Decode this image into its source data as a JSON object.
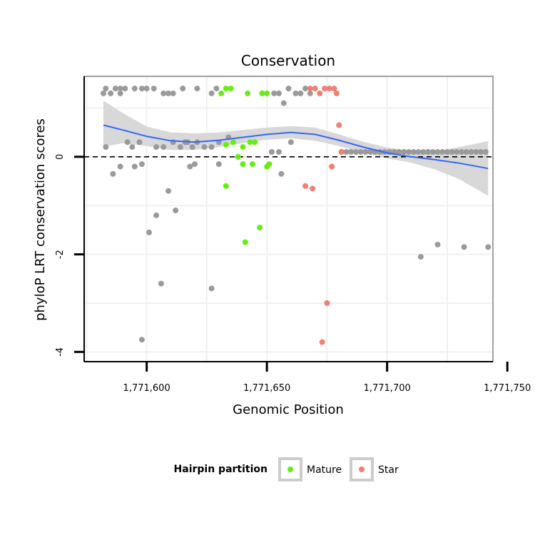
{
  "chart_data": {
    "type": "scatter",
    "title": "Conservation",
    "xlabel": "Genomic Position",
    "ylabel": "phyloP LRT conservation scores",
    "xlim": [
      1771574,
      1771744
    ],
    "ylim": [
      -4.2,
      1.65
    ],
    "x_ticks": [
      1771600,
      1771650,
      1771700,
      1771750
    ],
    "x_tick_labels": [
      "1,771,600",
      "1,771,650",
      "1,771,700",
      "1,771,750"
    ],
    "y_ticks": [
      -4,
      -2,
      0
    ],
    "y_tick_labels": [
      "-4",
      "-2",
      "0"
    ],
    "grid": true,
    "reference_line": {
      "y": 0,
      "style": "dashed"
    },
    "legend": {
      "title": "Hairpin partition",
      "position": "bottom",
      "entries": [
        {
          "label": "Mature",
          "color": "#66ee11"
        },
        {
          "label": "Star",
          "color": "#f27f73"
        }
      ]
    },
    "colors": {
      "other": "#9a9a9a",
      "mature": "#66ee11",
      "star": "#f27f73",
      "smooth_line": "#3366ff",
      "confidence_band": "#d4d4d4",
      "panel_border": "#a0a0a0"
    },
    "series": [
      {
        "name": "Other",
        "points": [
          [
            1771582,
            1.3
          ],
          [
            1771583,
            1.4
          ],
          [
            1771585,
            1.3
          ],
          [
            1771587,
            1.4
          ],
          [
            1771589,
            1.3
          ],
          [
            1771589,
            1.4
          ],
          [
            1771591,
            1.4
          ],
          [
            1771595,
            1.4
          ],
          [
            1771598,
            1.4
          ],
          [
            1771600,
            1.4
          ],
          [
            1771603,
            1.4
          ],
          [
            1771607,
            1.3
          ],
          [
            1771609,
            1.3
          ],
          [
            1771611,
            1.3
          ],
          [
            1771615,
            1.4
          ],
          [
            1771621,
            1.4
          ],
          [
            1771627,
            1.3
          ],
          [
            1771629,
            1.4
          ],
          [
            1771653,
            1.3
          ],
          [
            1771655,
            1.3
          ],
          [
            1771657,
            1.1
          ],
          [
            1771659,
            1.4
          ],
          [
            1771662,
            1.3
          ],
          [
            1771664,
            1.3
          ],
          [
            1771666,
            1.4
          ],
          [
            1771668,
            1.3
          ],
          [
            1771583,
            0.2
          ],
          [
            1771592,
            0.3
          ],
          [
            1771594,
            0.2
          ],
          [
            1771597,
            0.3
          ],
          [
            1771604,
            0.2
          ],
          [
            1771607,
            0.2
          ],
          [
            1771611,
            0.3
          ],
          [
            1771614,
            0.2
          ],
          [
            1771616,
            0.3
          ],
          [
            1771617,
            0.3
          ],
          [
            1771619,
            0.2
          ],
          [
            1771621,
            0.3
          ],
          [
            1771624,
            0.2
          ],
          [
            1771627,
            0.2
          ],
          [
            1771630,
            0.3
          ],
          [
            1771634,
            0.4
          ],
          [
            1771652,
            0.1
          ],
          [
            1771655,
            0.1
          ],
          [
            1771660,
            0.3
          ],
          [
            1771586,
            -0.35
          ],
          [
            1771589,
            -0.2
          ],
          [
            1771595,
            -0.2
          ],
          [
            1771598,
            -0.15
          ],
          [
            1771618,
            -0.2
          ],
          [
            1771620,
            -0.15
          ],
          [
            1771630,
            -0.15
          ],
          [
            1771656,
            -0.35
          ],
          [
            1771609,
            -0.7
          ],
          [
            1771612,
            -1.1
          ],
          [
            1771604,
            -1.2
          ],
          [
            1771601,
            -1.55
          ],
          [
            1771606,
            -2.6
          ],
          [
            1771627,
            -2.7
          ],
          [
            1771598,
            -3.75
          ],
          [
            1771714,
            -2.05
          ],
          [
            1771721,
            -1.8
          ],
          [
            1771732,
            -1.85
          ],
          [
            1771742,
            -1.85
          ],
          [
            1771681,
            0.1
          ],
          [
            1771683,
            0.1
          ],
          [
            1771685,
            0.1
          ],
          [
            1771687,
            0.1
          ],
          [
            1771689,
            0.1
          ],
          [
            1771691,
            0.1
          ],
          [
            1771693,
            0.1
          ],
          [
            1771695,
            0.1
          ],
          [
            1771697,
            0.1
          ],
          [
            1771699,
            0.1
          ],
          [
            1771701,
            0.1
          ],
          [
            1771703,
            0.1
          ],
          [
            1771705,
            0.1
          ],
          [
            1771707,
            0.1
          ],
          [
            1771709,
            0.1
          ],
          [
            1771711,
            0.1
          ],
          [
            1771713,
            0.1
          ],
          [
            1771715,
            0.1
          ],
          [
            1771717,
            0.1
          ],
          [
            1771719,
            0.1
          ],
          [
            1771721,
            0.1
          ],
          [
            1771723,
            0.1
          ],
          [
            1771725,
            0.1
          ],
          [
            1771727,
            0.1
          ],
          [
            1771729,
            0.1
          ],
          [
            1771731,
            0.1
          ],
          [
            1771733,
            0.1
          ],
          [
            1771735,
            0.1
          ],
          [
            1771737,
            0.1
          ],
          [
            1771739,
            0.1
          ],
          [
            1771741,
            0.1
          ]
        ]
      },
      {
        "name": "Mature",
        "points": [
          [
            1771631,
            1.3
          ],
          [
            1771633,
            1.4
          ],
          [
            1771635,
            1.4
          ],
          [
            1771642,
            1.3
          ],
          [
            1771648,
            1.3
          ],
          [
            1771650,
            1.3
          ],
          [
            1771633,
            0.25
          ],
          [
            1771636,
            0.3
          ],
          [
            1771640,
            0.2
          ],
          [
            1771643,
            0.3
          ],
          [
            1771645,
            0.3
          ],
          [
            1771638,
            0.0
          ],
          [
            1771640,
            -0.15
          ],
          [
            1771644,
            -0.15
          ],
          [
            1771650,
            -0.2
          ],
          [
            1771651,
            -0.15
          ],
          [
            1771633,
            -0.6
          ],
          [
            1771647,
            -1.45
          ],
          [
            1771641,
            -1.75
          ]
        ]
      },
      {
        "name": "Star",
        "points": [
          [
            1771668,
            1.4
          ],
          [
            1771670,
            1.4
          ],
          [
            1771672,
            1.3
          ],
          [
            1771674,
            1.4
          ],
          [
            1771676,
            1.4
          ],
          [
            1771678,
            1.4
          ],
          [
            1771679,
            1.3
          ],
          [
            1771680,
            0.65
          ],
          [
            1771681,
            0.1
          ],
          [
            1771677,
            -0.2
          ],
          [
            1771666,
            -0.6
          ],
          [
            1771669,
            -0.65
          ],
          [
            1771675,
            -3.0
          ],
          [
            1771673,
            -3.8
          ]
        ]
      }
    ],
    "smooth": {
      "x": [
        1771582,
        1771590,
        1771600,
        1771610,
        1771620,
        1771630,
        1771640,
        1771650,
        1771660,
        1771670,
        1771680,
        1771690,
        1771700,
        1771710,
        1771720,
        1771730,
        1771742
      ],
      "y": [
        0.65,
        0.55,
        0.42,
        0.33,
        0.3,
        0.34,
        0.4,
        0.46,
        0.5,
        0.46,
        0.34,
        0.2,
        0.08,
        0.0,
        -0.06,
        -0.13,
        -0.24
      ],
      "lower": [
        0.2,
        0.28,
        0.22,
        0.14,
        0.14,
        0.2,
        0.28,
        0.35,
        0.38,
        0.33,
        0.22,
        0.09,
        -0.03,
        -0.12,
        -0.26,
        -0.46,
        -0.8
      ],
      "upper": [
        1.15,
        0.9,
        0.62,
        0.5,
        0.48,
        0.5,
        0.55,
        0.6,
        0.63,
        0.6,
        0.46,
        0.31,
        0.19,
        0.12,
        0.11,
        0.2,
        0.32
      ]
    }
  }
}
